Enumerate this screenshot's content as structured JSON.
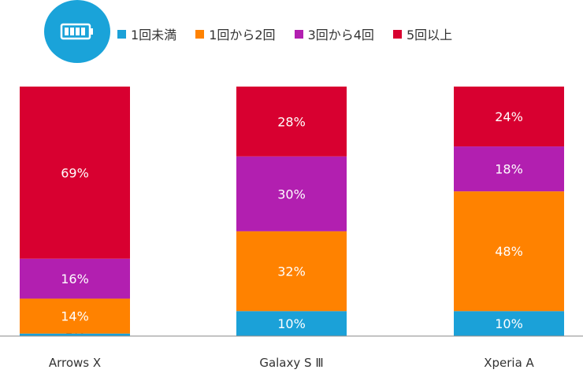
{
  "legend": {
    "items": [
      {
        "label": "1回未満",
        "color": "#1ba1d8"
      },
      {
        "label": "1回から2回",
        "color": "#ff8200"
      },
      {
        "label": "3回から4回",
        "color": "#b21fb0"
      },
      {
        "label": "5回以上",
        "color": "#d80030"
      }
    ]
  },
  "badge": {
    "icon": "battery-icon",
    "color": "#1aa3d9"
  },
  "chart_data": {
    "type": "bar",
    "stacked": true,
    "categories": [
      "Arrows X",
      "Galaxy S Ⅲ",
      "Xperia A"
    ],
    "series": [
      {
        "name": "1回未満",
        "values": [
          1,
          10,
          10
        ],
        "labels": [
          "1%",
          "10%",
          "10%"
        ],
        "color": "#1ba1d8"
      },
      {
        "name": "1回から2回",
        "values": [
          14,
          32,
          48
        ],
        "labels": [
          "14%",
          "32%",
          "48%"
        ],
        "color": "#ff8200"
      },
      {
        "name": "3回から4回",
        "values": [
          16,
          30,
          18
        ],
        "labels": [
          "16%",
          "30%",
          "18%"
        ],
        "color": "#b21fb0"
      },
      {
        "name": "5回以上",
        "values": [
          69,
          28,
          24
        ],
        "labels": [
          "69%",
          "28%",
          "24%"
        ],
        "color": "#d80030"
      }
    ],
    "ylim": [
      0,
      100
    ],
    "grid": false,
    "legend_position": "top"
  }
}
